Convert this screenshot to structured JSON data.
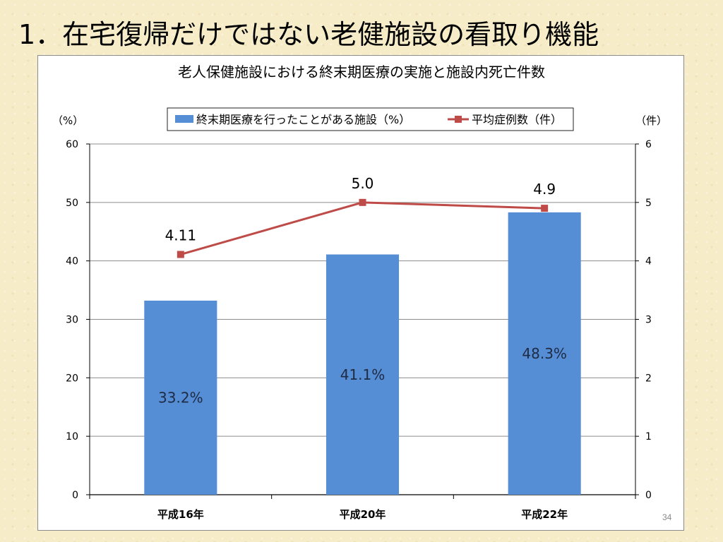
{
  "slide": {
    "title": "1．在宅復帰だけではない老健施設の看取り機能",
    "page_number": "34"
  },
  "chart_data": {
    "type": "bar",
    "title": "老人保健施設における終末期医療の実施と施設内死亡件数",
    "categories": [
      "平成16年",
      "平成20年",
      "平成22年"
    ],
    "series": [
      {
        "name": "終末期医療を行ったことがある施設（%）",
        "type": "bar",
        "axis": "left",
        "color": "#558ed5",
        "values": [
          33.2,
          41.1,
          48.3
        ],
        "data_labels": [
          "33.2%",
          "41.1%",
          "48.3%"
        ]
      },
      {
        "name": "平均症例数（件）",
        "type": "line",
        "axis": "right",
        "color": "#be4b48",
        "values": [
          4.11,
          5.0,
          4.9
        ],
        "data_labels": [
          "4.11",
          "5.0",
          "4.9"
        ]
      }
    ],
    "y_left": {
      "unit_label": "（%）",
      "ylim": [
        0,
        60
      ],
      "ticks": [
        "0",
        "10",
        "20",
        "30",
        "40",
        "50",
        "60"
      ]
    },
    "y_right": {
      "unit_label": "（件）",
      "ylim": [
        0,
        6
      ],
      "ticks": [
        "0",
        "1",
        "2",
        "3",
        "4",
        "5",
        "6"
      ]
    },
    "grid": true,
    "legend": "top-center"
  }
}
